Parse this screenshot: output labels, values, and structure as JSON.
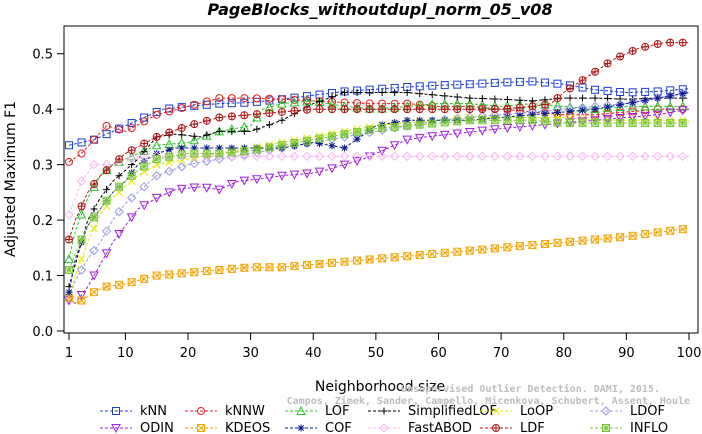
{
  "chart_data": {
    "type": "line",
    "title": "PageBlocks_withoutdupl_norm_05_v08",
    "xlabel": "Neighborhood size",
    "ylabel": "Adjusted Maximum F1",
    "xlim": [
      1,
      100
    ],
    "ylim": [
      0,
      0.55
    ],
    "xticks": [
      "1",
      "10",
      "20",
      "30",
      "40",
      "50",
      "60",
      "70",
      "80",
      "90",
      "100"
    ],
    "yticks": [
      "0.0",
      "0.1",
      "0.2",
      "0.3",
      "0.4",
      "0.5"
    ],
    "grid": false,
    "legend_position": "bottom",
    "watermark": "Campos, Zimek, Sander, Campello, Micenkova, Schubert, Assent, Houle Unsupervised Outlier Detection. DAMI, 2015.",
    "watermark_lines": [
      "Unsupervised Outlier Detection. DAMI, 2015.",
      "Campos, Zimek, Sander, Campello, Micenkova, Schubert, Assent, Houle"
    ],
    "series": [
      {
        "name": "kNN",
        "color": "#1f3fd6",
        "marker": "square",
        "points": [
          [
            1,
            0.335
          ],
          [
            3,
            0.34
          ],
          [
            5,
            0.345
          ],
          [
            10,
            0.37
          ],
          [
            14,
            0.39
          ],
          [
            16,
            0.4
          ],
          [
            20,
            0.405
          ],
          [
            25,
            0.41
          ],
          [
            30,
            0.412
          ],
          [
            35,
            0.418
          ],
          [
            40,
            0.425
          ],
          [
            45,
            0.432
          ],
          [
            50,
            0.436
          ],
          [
            55,
            0.44
          ],
          [
            60,
            0.443
          ],
          [
            65,
            0.445
          ],
          [
            70,
            0.448
          ],
          [
            75,
            0.45
          ],
          [
            80,
            0.445
          ],
          [
            85,
            0.435
          ],
          [
            90,
            0.43
          ],
          [
            95,
            0.432
          ],
          [
            100,
            0.437
          ]
        ]
      },
      {
        "name": "kNNW",
        "color": "#e0201f",
        "marker": "circle",
        "points": [
          [
            1,
            0.305
          ],
          [
            3,
            0.32
          ],
          [
            5,
            0.345
          ],
          [
            7,
            0.37
          ],
          [
            10,
            0.36
          ],
          [
            15,
            0.39
          ],
          [
            20,
            0.405
          ],
          [
            25,
            0.42
          ],
          [
            30,
            0.42
          ],
          [
            35,
            0.418
          ],
          [
            40,
            0.415
          ],
          [
            45,
            0.412
          ],
          [
            50,
            0.41
          ],
          [
            55,
            0.41
          ],
          [
            60,
            0.405
          ],
          [
            65,
            0.405
          ],
          [
            70,
            0.4
          ],
          [
            75,
            0.395
          ],
          [
            80,
            0.39
          ],
          [
            85,
            0.39
          ],
          [
            90,
            0.395
          ],
          [
            95,
            0.4
          ],
          [
            100,
            0.4
          ]
        ]
      },
      {
        "name": "LOF",
        "color": "#2ac32a",
        "marker": "triangle-up",
        "points": [
          [
            1,
            0.13
          ],
          [
            2,
            0.18
          ],
          [
            4,
            0.24
          ],
          [
            6,
            0.28
          ],
          [
            8,
            0.3
          ],
          [
            10,
            0.31
          ],
          [
            12,
            0.32
          ],
          [
            15,
            0.335
          ],
          [
            20,
            0.34
          ],
          [
            25,
            0.36
          ],
          [
            30,
            0.37
          ],
          [
            32,
            0.4
          ],
          [
            35,
            0.41
          ],
          [
            40,
            0.415
          ],
          [
            45,
            0.405
          ],
          [
            50,
            0.4
          ],
          [
            55,
            0.405
          ],
          [
            60,
            0.41
          ],
          [
            65,
            0.41
          ],
          [
            70,
            0.405
          ],
          [
            75,
            0.41
          ],
          [
            80,
            0.405
          ],
          [
            85,
            0.4
          ],
          [
            90,
            0.405
          ],
          [
            95,
            0.405
          ],
          [
            100,
            0.405
          ]
        ]
      },
      {
        "name": "SimplifiedLOF",
        "color": "#000000",
        "marker": "plus",
        "points": [
          [
            1,
            0.08
          ],
          [
            2,
            0.12
          ],
          [
            3,
            0.16
          ],
          [
            4,
            0.2
          ],
          [
            5,
            0.22
          ],
          [
            6,
            0.24
          ],
          [
            8,
            0.27
          ],
          [
            10,
            0.29
          ],
          [
            12,
            0.31
          ],
          [
            15,
            0.35
          ],
          [
            18,
            0.355
          ],
          [
            22,
            0.35
          ],
          [
            25,
            0.36
          ],
          [
            30,
            0.36
          ],
          [
            35,
            0.38
          ],
          [
            40,
            0.41
          ],
          [
            45,
            0.43
          ],
          [
            50,
            0.43
          ],
          [
            55,
            0.43
          ],
          [
            60,
            0.425
          ],
          [
            65,
            0.42
          ],
          [
            70,
            0.418
          ],
          [
            75,
            0.415
          ],
          [
            80,
            0.42
          ],
          [
            85,
            0.42
          ],
          [
            90,
            0.418
          ],
          [
            95,
            0.42
          ],
          [
            100,
            0.42
          ]
        ]
      },
      {
        "name": "LoOP",
        "color": "#e8e800",
        "marker": "x",
        "points": [
          [
            1,
            0.06
          ],
          [
            2,
            0.1
          ],
          [
            4,
            0.16
          ],
          [
            6,
            0.21
          ],
          [
            8,
            0.24
          ],
          [
            10,
            0.26
          ],
          [
            12,
            0.28
          ],
          [
            15,
            0.3
          ],
          [
            20,
            0.31
          ],
          [
            25,
            0.32
          ],
          [
            30,
            0.33
          ],
          [
            35,
            0.34
          ],
          [
            40,
            0.35
          ],
          [
            45,
            0.36
          ],
          [
            50,
            0.37
          ],
          [
            55,
            0.375
          ],
          [
            60,
            0.38
          ],
          [
            65,
            0.385
          ],
          [
            70,
            0.385
          ],
          [
            75,
            0.385
          ],
          [
            80,
            0.385
          ],
          [
            85,
            0.38
          ],
          [
            90,
            0.38
          ],
          [
            95,
            0.38
          ],
          [
            100,
            0.38
          ]
        ]
      },
      {
        "name": "LDOF",
        "color": "#9a9aea",
        "marker": "diamond",
        "points": [
          [
            1,
            0.06
          ],
          [
            2,
            0.09
          ],
          [
            4,
            0.13
          ],
          [
            6,
            0.16
          ],
          [
            8,
            0.2
          ],
          [
            10,
            0.23
          ],
          [
            12,
            0.25
          ],
          [
            15,
            0.28
          ],
          [
            20,
            0.3
          ],
          [
            25,
            0.31
          ],
          [
            30,
            0.32
          ],
          [
            35,
            0.33
          ],
          [
            40,
            0.34
          ],
          [
            45,
            0.35
          ],
          [
            50,
            0.36
          ],
          [
            55,
            0.37
          ],
          [
            60,
            0.38
          ],
          [
            65,
            0.385
          ],
          [
            70,
            0.39
          ],
          [
            75,
            0.395
          ],
          [
            80,
            0.4
          ],
          [
            85,
            0.405
          ],
          [
            90,
            0.41
          ],
          [
            95,
            0.42
          ],
          [
            100,
            0.43
          ]
        ]
      },
      {
        "name": "ODIN",
        "color": "#a020e0",
        "marker": "triangle-down",
        "points": [
          [
            1,
            0.055
          ],
          [
            2,
            0.05
          ],
          [
            4,
            0.08
          ],
          [
            6,
            0.12
          ],
          [
            8,
            0.16
          ],
          [
            10,
            0.19
          ],
          [
            12,
            0.22
          ],
          [
            15,
            0.24
          ],
          [
            18,
            0.255
          ],
          [
            22,
            0.26
          ],
          [
            25,
            0.255
          ],
          [
            28,
            0.27
          ],
          [
            32,
            0.275
          ],
          [
            35,
            0.28
          ],
          [
            40,
            0.285
          ],
          [
            42,
            0.29
          ],
          [
            45,
            0.3
          ],
          [
            48,
            0.31
          ],
          [
            52,
            0.33
          ],
          [
            55,
            0.345
          ],
          [
            58,
            0.35
          ],
          [
            62,
            0.355
          ],
          [
            66,
            0.36
          ],
          [
            70,
            0.365
          ],
          [
            75,
            0.37
          ],
          [
            80,
            0.375
          ],
          [
            85,
            0.38
          ],
          [
            90,
            0.385
          ],
          [
            95,
            0.39
          ],
          [
            100,
            0.4
          ]
        ]
      },
      {
        "name": "KDEOS",
        "color": "#f2a400",
        "marker": "square-x",
        "points": [
          [
            1,
            0.06
          ],
          [
            2,
            0.05
          ],
          [
            3,
            0.055
          ],
          [
            5,
            0.07
          ],
          [
            7,
            0.08
          ],
          [
            10,
            0.085
          ],
          [
            15,
            0.1
          ],
          [
            20,
            0.105
          ],
          [
            25,
            0.11
          ],
          [
            30,
            0.115
          ],
          [
            35,
            0.115
          ],
          [
            40,
            0.12
          ],
          [
            45,
            0.125
          ],
          [
            50,
            0.13
          ],
          [
            55,
            0.135
          ],
          [
            60,
            0.14
          ],
          [
            65,
            0.145
          ],
          [
            70,
            0.15
          ],
          [
            75,
            0.155
          ],
          [
            80,
            0.16
          ],
          [
            85,
            0.165
          ],
          [
            90,
            0.17
          ],
          [
            95,
            0.178
          ],
          [
            100,
            0.185
          ]
        ]
      },
      {
        "name": "COF",
        "color": "#0a1a8a",
        "marker": "asterisk",
        "points": [
          [
            1,
            0.07
          ],
          [
            2,
            0.13
          ],
          [
            4,
            0.19
          ],
          [
            6,
            0.22
          ],
          [
            8,
            0.25
          ],
          [
            10,
            0.27
          ],
          [
            12,
            0.3
          ],
          [
            15,
            0.32
          ],
          [
            18,
            0.33
          ],
          [
            20,
            0.33
          ],
          [
            25,
            0.33
          ],
          [
            30,
            0.33
          ],
          [
            35,
            0.33
          ],
          [
            40,
            0.34
          ],
          [
            45,
            0.33
          ],
          [
            50,
            0.37
          ],
          [
            55,
            0.38
          ],
          [
            60,
            0.38
          ],
          [
            65,
            0.38
          ],
          [
            70,
            0.385
          ],
          [
            75,
            0.39
          ],
          [
            80,
            0.395
          ],
          [
            85,
            0.4
          ],
          [
            90,
            0.41
          ],
          [
            95,
            0.42
          ],
          [
            100,
            0.43
          ]
        ]
      },
      {
        "name": "FastABOD",
        "color": "#f7b6f0",
        "marker": "diamond",
        "points": [
          [
            1,
            0.21
          ],
          [
            3,
            0.27
          ],
          [
            5,
            0.3
          ],
          [
            8,
            0.3
          ],
          [
            10,
            0.31
          ],
          [
            15,
            0.315
          ],
          [
            20,
            0.315
          ],
          [
            25,
            0.315
          ],
          [
            30,
            0.315
          ],
          [
            40,
            0.315
          ],
          [
            50,
            0.315
          ],
          [
            60,
            0.315
          ],
          [
            70,
            0.315
          ],
          [
            80,
            0.315
          ],
          [
            90,
            0.315
          ],
          [
            100,
            0.315
          ]
        ]
      },
      {
        "name": "LDF",
        "color": "#b01414",
        "marker": "circle-plus",
        "points": [
          [
            1,
            0.165
          ],
          [
            2,
            0.2
          ],
          [
            4,
            0.25
          ],
          [
            6,
            0.28
          ],
          [
            8,
            0.3
          ],
          [
            10,
            0.32
          ],
          [
            15,
            0.35
          ],
          [
            20,
            0.37
          ],
          [
            25,
            0.385
          ],
          [
            30,
            0.39
          ],
          [
            35,
            0.395
          ],
          [
            40,
            0.4
          ],
          [
            45,
            0.4
          ],
          [
            50,
            0.4
          ],
          [
            55,
            0.4
          ],
          [
            60,
            0.4
          ],
          [
            65,
            0.4
          ],
          [
            70,
            0.4
          ],
          [
            75,
            0.405
          ],
          [
            78,
            0.41
          ],
          [
            80,
            0.43
          ],
          [
            84,
            0.46
          ],
          [
            88,
            0.49
          ],
          [
            92,
            0.51
          ],
          [
            96,
            0.52
          ],
          [
            100,
            0.52
          ]
        ]
      },
      {
        "name": "INFLO",
        "color": "#7ac83a",
        "marker": "square-cross",
        "points": [
          [
            1,
            0.11
          ],
          [
            2,
            0.14
          ],
          [
            4,
            0.19
          ],
          [
            6,
            0.22
          ],
          [
            8,
            0.25
          ],
          [
            10,
            0.27
          ],
          [
            12,
            0.29
          ],
          [
            15,
            0.31
          ],
          [
            20,
            0.32
          ],
          [
            25,
            0.32
          ],
          [
            30,
            0.325
          ],
          [
            35,
            0.335
          ],
          [
            40,
            0.345
          ],
          [
            45,
            0.355
          ],
          [
            50,
            0.365
          ],
          [
            55,
            0.37
          ],
          [
            60,
            0.375
          ],
          [
            65,
            0.38
          ],
          [
            70,
            0.38
          ],
          [
            75,
            0.38
          ],
          [
            80,
            0.375
          ],
          [
            85,
            0.375
          ],
          [
            90,
            0.375
          ],
          [
            95,
            0.375
          ],
          [
            100,
            0.375
          ]
        ]
      }
    ]
  }
}
